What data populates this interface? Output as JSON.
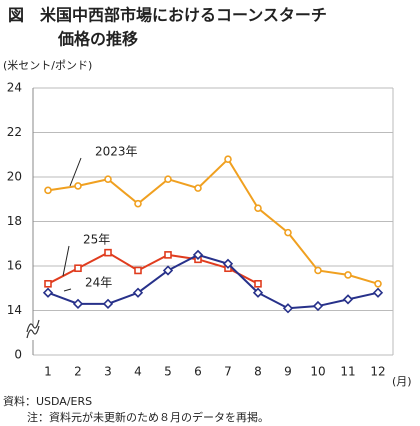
{
  "chart_data": {
    "type": "line",
    "title": [
      "図　米国中西部市場におけるコーンスターチ",
      "価格の推移"
    ],
    "y_unit": "(米セント/ポンド)",
    "x_unit": "(月)",
    "source": "資料：USDA/ERS",
    "note": "注：資料元が未更新のため８月のデータを再掲。",
    "categories": [
      "1",
      "2",
      "3",
      "4",
      "5",
      "6",
      "7",
      "8",
      "9",
      "10",
      "11",
      "12"
    ],
    "series": [
      {
        "name": "2023年",
        "color": "#f0a020",
        "marker": "circle",
        "values": [
          19.4,
          19.6,
          19.9,
          18.8,
          19.9,
          19.5,
          20.8,
          18.6,
          17.5,
          15.8,
          15.6,
          15.2
        ]
      },
      {
        "name": "25年",
        "color": "#e03c1e",
        "marker": "square",
        "values": [
          15.2,
          15.9,
          16.6,
          15.8,
          16.5,
          16.3,
          15.9,
          15.2,
          null,
          null,
          null,
          null
        ]
      },
      {
        "name": "24年",
        "color": "#27318a",
        "marker": "diamond",
        "values": [
          14.8,
          14.3,
          14.3,
          14.8,
          15.8,
          16.5,
          16.1,
          14.8,
          14.1,
          14.2,
          14.5,
          14.8
        ]
      }
    ],
    "ylim": [
      0,
      24
    ],
    "axis_break": [
      0,
      14
    ],
    "yticks": [
      0,
      14,
      16,
      18,
      20,
      22,
      24
    ],
    "grid": true
  }
}
